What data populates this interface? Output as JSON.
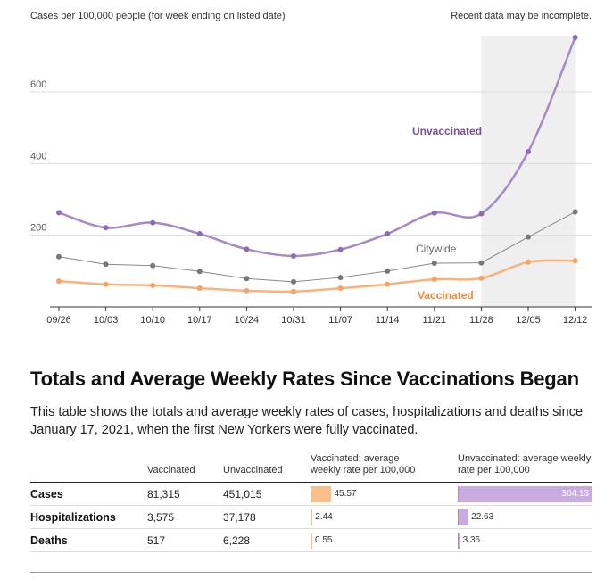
{
  "chart_data": {
    "type": "line",
    "subtitle": "Cases per 100,000 people (for week ending on listed date)",
    "note": "Recent data may be incomplete.",
    "x": [
      "09/26",
      "10/03",
      "10/10",
      "10/17",
      "10/24",
      "10/31",
      "11/07",
      "11/14",
      "11/21",
      "11/28",
      "12/05",
      "12/12"
    ],
    "yticks": [
      200,
      400,
      600
    ],
    "ylim": [
      0,
      760
    ],
    "highlight_from": "11/28",
    "series": [
      {
        "name": "Unvaccinated",
        "color": "#a48bc6",
        "label_color": "#7a4f9e",
        "dot_color": "#8f6bb5",
        "values": [
          263,
          221,
          235,
          204,
          161,
          142,
          160,
          204,
          262,
          260,
          433,
          752
        ]
      },
      {
        "name": "Citywide",
        "color": "#888888",
        "label_color": "#666666",
        "dot_color": "#777777",
        "values": [
          140,
          119,
          115,
          99,
          79,
          70,
          82,
          100,
          122,
          123,
          195,
          265
        ]
      },
      {
        "name": "Vaccinated",
        "color": "#f8b37c",
        "label_color": "#f08a3a",
        "dot_color": "#f6a361",
        "values": [
          72,
          63,
          60,
          52,
          45,
          43,
          52,
          63,
          77,
          80,
          125,
          129
        ]
      }
    ]
  },
  "section": {
    "title": "Totals and Average Weekly Rates Since Vaccinations Began",
    "description": "This table shows the totals and average weekly rates of cases, hospitalizations and deaths since January 17, 2021, when the first New Yorkers were fully vaccinated."
  },
  "table": {
    "headers": {
      "vaccinated": "Vaccinated",
      "unvaccinated": "Unvaccinated",
      "vax_rate": "Vaccinated: average weekly rate per 100,000",
      "unvax_rate": "Unvaccinated: average weekly rate per 100,000"
    },
    "rate_max": 304.13,
    "colors": {
      "vaccinated": "#fbbf8a",
      "unvaccinated": "#c8ace0"
    },
    "rows": [
      {
        "label": "Cases",
        "vaccinated": "81,315",
        "unvaccinated": "451,015",
        "vax_rate": 45.57,
        "vax_rate_text": "45.57",
        "unvax_rate": 304.13,
        "unvax_rate_text": "304.13"
      },
      {
        "label": "Hospitalizations",
        "vaccinated": "3,575",
        "unvaccinated": "37,178",
        "vax_rate": 2.44,
        "vax_rate_text": "2.44",
        "unvax_rate": 22.63,
        "unvax_rate_text": "22.63"
      },
      {
        "label": "Deaths",
        "vaccinated": "517",
        "unvaccinated": "6,228",
        "vax_rate": 0.55,
        "vax_rate_text": "0.55",
        "unvax_rate": 3.36,
        "unvax_rate_text": "3.36"
      }
    ]
  }
}
